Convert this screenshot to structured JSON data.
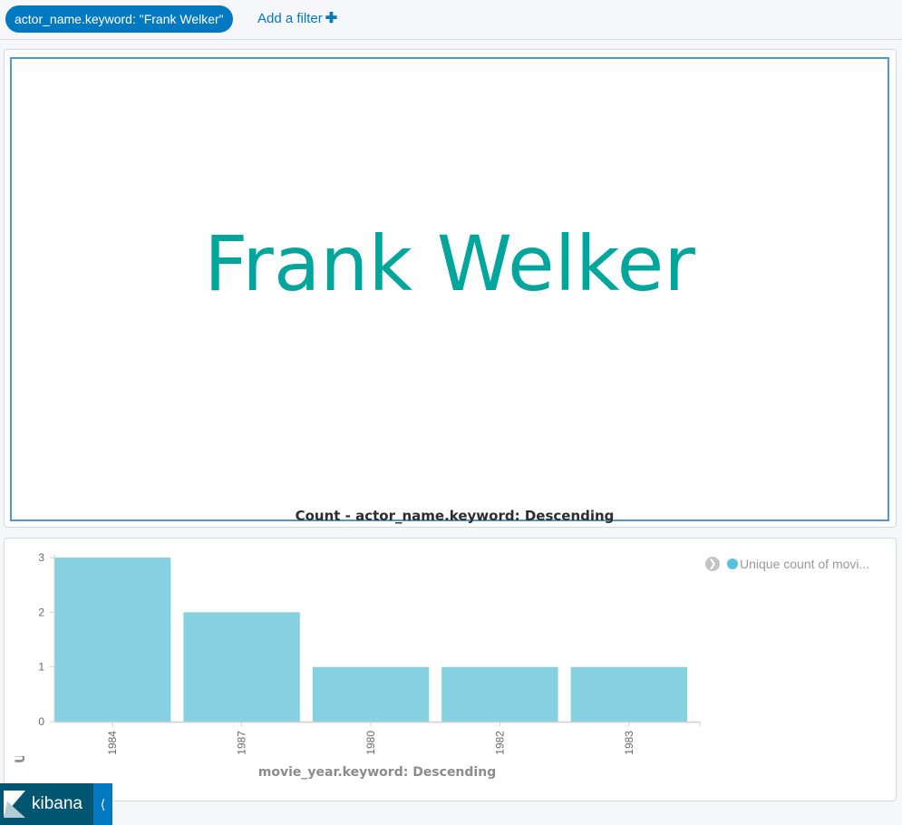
{
  "filter_bar": {
    "active_filter": "actor_name.keyword: \"Frank Welker\"",
    "add_filter_label": "Add a filter",
    "add_filter_icon": "plus-icon"
  },
  "metric_panel": {
    "value": "Frank Welker",
    "label": "Count - actor_name.keyword: Descending"
  },
  "chart_panel": {
    "legend_toggle_icon": "chevron-right-icon",
    "legend_label": "Unique count of movi..."
  },
  "colors": {
    "accent": "#0079c1",
    "metric_text": "#00a69b",
    "bar": "#85d1e1",
    "legend_dot": "#57c1de"
  },
  "sidebar": {
    "logo_label": "kibana",
    "logo_icon": "kibana-logo-icon",
    "collapse_icon": "collapse-left-icon"
  },
  "chart_data": {
    "type": "bar",
    "categories": [
      "1984",
      "1987",
      "1980",
      "1982",
      "1983"
    ],
    "series": [
      {
        "name": "Unique count of movi...",
        "values": [
          3,
          2,
          1,
          1,
          1
        ]
      }
    ],
    "xlabel": "movie_year.keyword: Descending",
    "ylabel": "Unique count of movie_name.keyw",
    "ylim": [
      0,
      3
    ],
    "yticks": [
      0,
      1,
      2,
      3
    ],
    "legend": "top-right",
    "grid": false
  }
}
